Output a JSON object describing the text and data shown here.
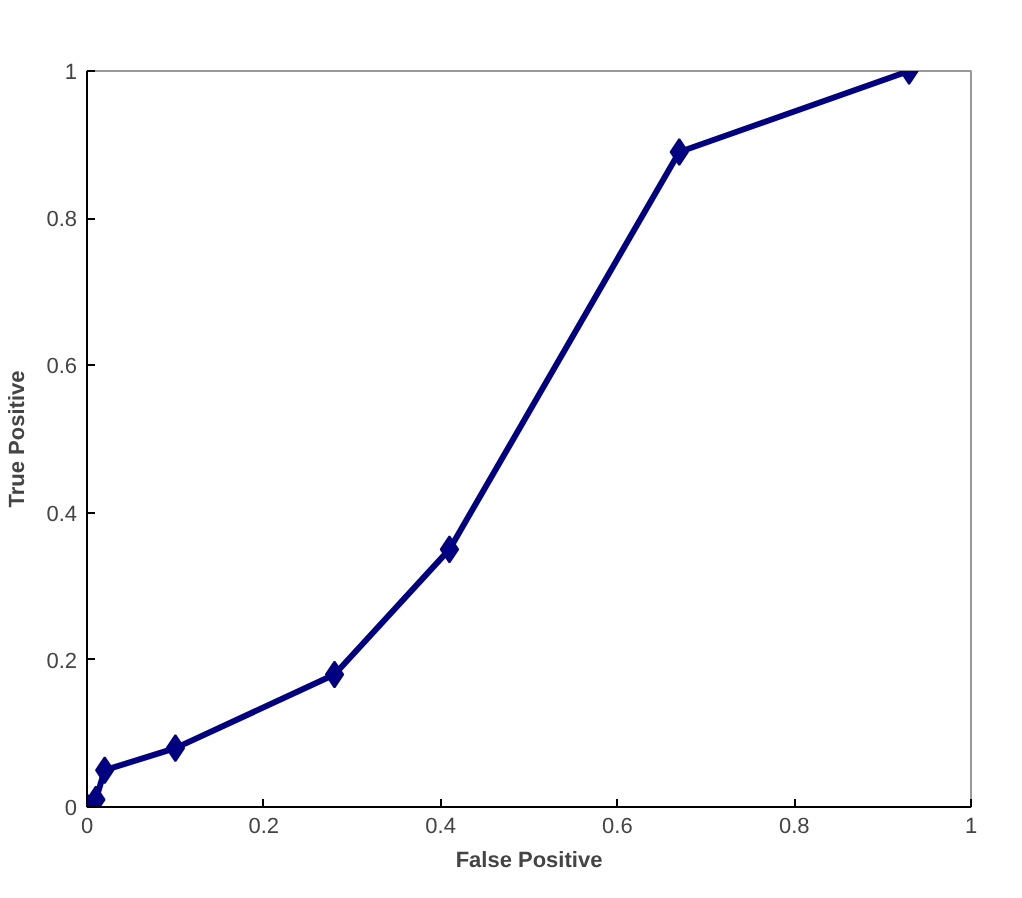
{
  "chart_data": {
    "type": "line",
    "xlabel": "False Positive",
    "ylabel": "True Positive",
    "x": [
      0,
      0.01,
      0.02,
      0.1,
      0.28,
      0.41,
      0.67,
      0.93
    ],
    "series": [
      {
        "color": "#000080",
        "values": [
          0,
          0.01,
          0.05,
          0.08,
          0.18,
          0.35,
          0.89,
          1.0
        ]
      }
    ],
    "xlim": [
      0,
      1
    ],
    "ylim": [
      0,
      1
    ],
    "xticks": [
      0,
      0.2,
      0.4,
      0.6,
      0.8,
      1
    ],
    "yticks": [
      0,
      0.2,
      0.4,
      0.6,
      0.8,
      1
    ],
    "grid": false,
    "marker": "diamond",
    "line_style": "solid"
  }
}
